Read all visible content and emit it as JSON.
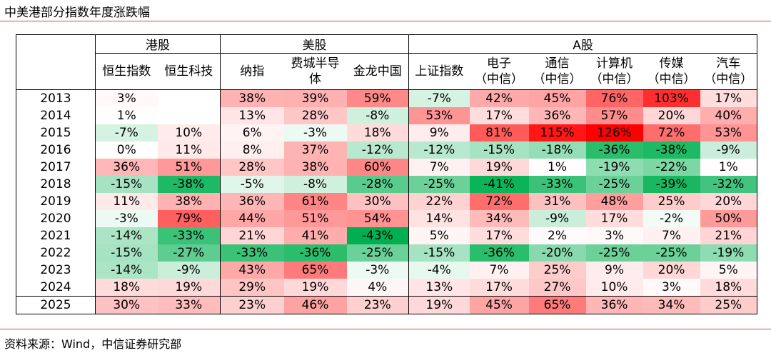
{
  "title": "中美港部分指数年度涨跌幅",
  "source": "资料来源：Wind，中信证券研究部",
  "table": {
    "groups": [
      {
        "label": "港股",
        "span": 2
      },
      {
        "label": "美股",
        "span": 3
      },
      {
        "label": "A股",
        "span": 6
      }
    ],
    "columns": [
      "恒生指数",
      "恒生科技",
      "纳指",
      "费城半导体",
      "金龙中国",
      "上证指数",
      "电子\n（中信）",
      "通信\n（中信）",
      "计算机\n（中信）",
      "传媒\n（中信）",
      "汽车\n（中信）"
    ],
    "rows": [
      [
        "2013",
        "3%",
        null,
        "38%",
        "39%",
        "59%",
        "-7%",
        "42%",
        "45%",
        "76%",
        "103%",
        "17%"
      ],
      [
        "2014",
        "1%",
        null,
        "13%",
        "28%",
        "-8%",
        "53%",
        "17%",
        "36%",
        "57%",
        "20%",
        "40%"
      ],
      [
        "2015",
        "-7%",
        "10%",
        "6%",
        "-3%",
        "18%",
        "9%",
        "81%",
        "115%",
        "126%",
        "72%",
        "53%"
      ],
      [
        "2016",
        "0%",
        "11%",
        "8%",
        "37%",
        "-12%",
        "-12%",
        "-15%",
        "-18%",
        "-36%",
        "-38%",
        "-9%"
      ],
      [
        "2017",
        "36%",
        "51%",
        "28%",
        "38%",
        "60%",
        "7%",
        "19%",
        "1%",
        "-19%",
        "-22%",
        "1%"
      ],
      [
        "2018",
        "-15%",
        "-38%",
        "-5%",
        "-8%",
        "-28%",
        "-25%",
        "-41%",
        "-33%",
        "-25%",
        "-39%",
        "-32%"
      ],
      [
        "2019",
        "11%",
        "38%",
        "36%",
        "61%",
        "30%",
        "22%",
        "72%",
        "31%",
        "48%",
        "25%",
        "20%"
      ],
      [
        "2020",
        "-3%",
        "79%",
        "44%",
        "51%",
        "54%",
        "14%",
        "34%",
        "-9%",
        "17%",
        "-2%",
        "50%"
      ],
      [
        "2021",
        "-14%",
        "-33%",
        "21%",
        "41%",
        "-43%",
        "5%",
        "17%",
        "2%",
        "3%",
        "7%",
        "21%"
      ],
      [
        "2022",
        "-15%",
        "-27%",
        "-33%",
        "-36%",
        "-25%",
        "-15%",
        "-36%",
        "-20%",
        "-25%",
        "-25%",
        "-19%"
      ],
      [
        "2023",
        "-14%",
        "-9%",
        "43%",
        "65%",
        "-3%",
        "-4%",
        "7%",
        "25%",
        "9%",
        "20%",
        "5%"
      ],
      [
        "2024",
        "18%",
        "19%",
        "29%",
        "19%",
        "4%",
        "13%",
        "17%",
        "27%",
        "10%",
        "3%",
        "18%"
      ],
      [
        "2025",
        "30%",
        "33%",
        "23%",
        "46%",
        "23%",
        "19%",
        "45%",
        "65%",
        "36%",
        "34%",
        "25%"
      ]
    ]
  }
}
